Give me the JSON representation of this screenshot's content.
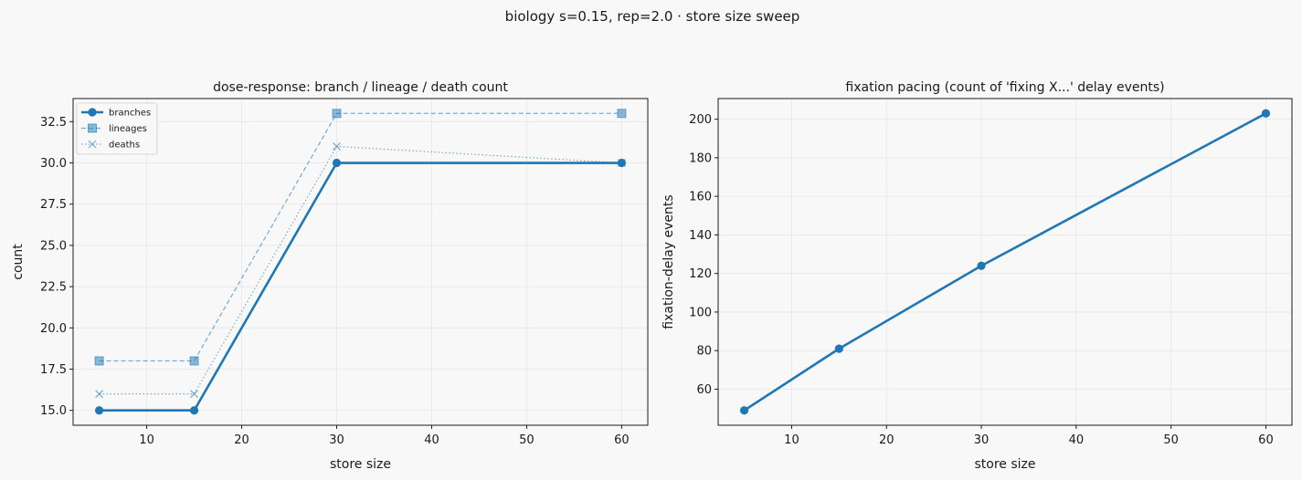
{
  "figure": {
    "suptitle": "biology s=0.15, rep=2.0 · store size sweep",
    "colors": {
      "background": "#f8f8f8",
      "series": "#1f77b4",
      "grid": "#e6e6e6"
    }
  },
  "chart_data": [
    {
      "type": "line",
      "title": "dose-response: branch / lineage / death count",
      "xlabel": "store size",
      "ylabel": "count",
      "x": [
        5,
        15,
        30,
        60
      ],
      "xlim": [
        2.25,
        62.75
      ],
      "ylim": [
        14.1,
        33.9
      ],
      "xticks": [
        "10",
        "20",
        "30",
        "40",
        "50",
        "60"
      ],
      "yticks": [
        "15.0",
        "17.5",
        "20.0",
        "22.5",
        "25.0",
        "27.5",
        "30.0",
        "32.5"
      ],
      "grid": true,
      "legend": "top-left",
      "series": [
        {
          "name": "branches",
          "values": [
            15,
            15,
            30,
            30
          ],
          "marker": "circle",
          "line": "solid"
        },
        {
          "name": "lineages",
          "values": [
            18,
            18,
            33,
            33
          ],
          "marker": "square",
          "line": "dashed"
        },
        {
          "name": "deaths",
          "values": [
            16,
            16,
            31,
            30
          ],
          "marker": "x",
          "line": "dotted"
        }
      ]
    },
    {
      "type": "line",
      "title": "fixation pacing (count of 'fixing X...' delay events)",
      "xlabel": "store size",
      "ylabel": "fixation-delay events",
      "x": [
        5,
        15,
        30,
        60
      ],
      "xlim": [
        2.25,
        62.75
      ],
      "ylim": [
        41.3,
        210.7
      ],
      "xticks": [
        "10",
        "20",
        "30",
        "40",
        "50",
        "60"
      ],
      "yticks": [
        "60",
        "80",
        "100",
        "120",
        "140",
        "160",
        "180",
        "200"
      ],
      "grid": true,
      "series": [
        {
          "values": [
            49,
            81,
            124,
            203
          ],
          "marker": "circle",
          "line": "solid"
        }
      ]
    }
  ]
}
